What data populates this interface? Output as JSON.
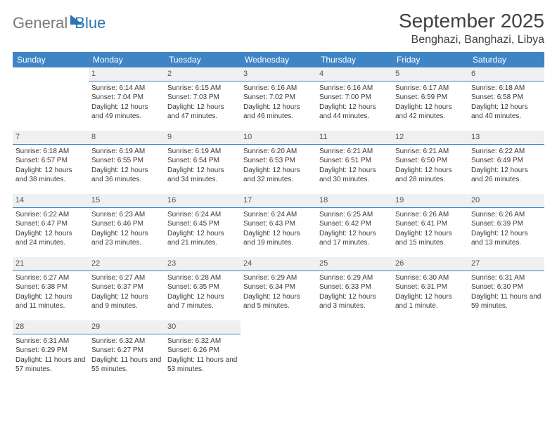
{
  "brand": {
    "part1": "General",
    "part2": "Blue"
  },
  "title": "September 2025",
  "location": "Benghazi, Banghazi, Libya",
  "colors": {
    "header_bg": "#3f85c6",
    "header_text": "#ffffff",
    "daynum_bg": "#eef0f1",
    "daynum_border": "#3f85c6",
    "body_text": "#3a3a3a",
    "brand_gray": "#7a7a7a",
    "brand_blue": "#2f74b5"
  },
  "typography": {
    "title_fontsize": 28,
    "location_fontsize": 16,
    "header_fontsize": 12,
    "cell_fontsize": 10
  },
  "weekdays": [
    "Sunday",
    "Monday",
    "Tuesday",
    "Wednesday",
    "Thursday",
    "Friday",
    "Saturday"
  ],
  "weeks": [
    [
      null,
      {
        "n": "1",
        "sr": "Sunrise: 6:14 AM",
        "ss": "Sunset: 7:04 PM",
        "dl": "Daylight: 12 hours and 49 minutes."
      },
      {
        "n": "2",
        "sr": "Sunrise: 6:15 AM",
        "ss": "Sunset: 7:03 PM",
        "dl": "Daylight: 12 hours and 47 minutes."
      },
      {
        "n": "3",
        "sr": "Sunrise: 6:16 AM",
        "ss": "Sunset: 7:02 PM",
        "dl": "Daylight: 12 hours and 46 minutes."
      },
      {
        "n": "4",
        "sr": "Sunrise: 6:16 AM",
        "ss": "Sunset: 7:00 PM",
        "dl": "Daylight: 12 hours and 44 minutes."
      },
      {
        "n": "5",
        "sr": "Sunrise: 6:17 AM",
        "ss": "Sunset: 6:59 PM",
        "dl": "Daylight: 12 hours and 42 minutes."
      },
      {
        "n": "6",
        "sr": "Sunrise: 6:18 AM",
        "ss": "Sunset: 6:58 PM",
        "dl": "Daylight: 12 hours and 40 minutes."
      }
    ],
    [
      {
        "n": "7",
        "sr": "Sunrise: 6:18 AM",
        "ss": "Sunset: 6:57 PM",
        "dl": "Daylight: 12 hours and 38 minutes."
      },
      {
        "n": "8",
        "sr": "Sunrise: 6:19 AM",
        "ss": "Sunset: 6:55 PM",
        "dl": "Daylight: 12 hours and 36 minutes."
      },
      {
        "n": "9",
        "sr": "Sunrise: 6:19 AM",
        "ss": "Sunset: 6:54 PM",
        "dl": "Daylight: 12 hours and 34 minutes."
      },
      {
        "n": "10",
        "sr": "Sunrise: 6:20 AM",
        "ss": "Sunset: 6:53 PM",
        "dl": "Daylight: 12 hours and 32 minutes."
      },
      {
        "n": "11",
        "sr": "Sunrise: 6:21 AM",
        "ss": "Sunset: 6:51 PM",
        "dl": "Daylight: 12 hours and 30 minutes."
      },
      {
        "n": "12",
        "sr": "Sunrise: 6:21 AM",
        "ss": "Sunset: 6:50 PM",
        "dl": "Daylight: 12 hours and 28 minutes."
      },
      {
        "n": "13",
        "sr": "Sunrise: 6:22 AM",
        "ss": "Sunset: 6:49 PM",
        "dl": "Daylight: 12 hours and 26 minutes."
      }
    ],
    [
      {
        "n": "14",
        "sr": "Sunrise: 6:22 AM",
        "ss": "Sunset: 6:47 PM",
        "dl": "Daylight: 12 hours and 24 minutes."
      },
      {
        "n": "15",
        "sr": "Sunrise: 6:23 AM",
        "ss": "Sunset: 6:46 PM",
        "dl": "Daylight: 12 hours and 23 minutes."
      },
      {
        "n": "16",
        "sr": "Sunrise: 6:24 AM",
        "ss": "Sunset: 6:45 PM",
        "dl": "Daylight: 12 hours and 21 minutes."
      },
      {
        "n": "17",
        "sr": "Sunrise: 6:24 AM",
        "ss": "Sunset: 6:43 PM",
        "dl": "Daylight: 12 hours and 19 minutes."
      },
      {
        "n": "18",
        "sr": "Sunrise: 6:25 AM",
        "ss": "Sunset: 6:42 PM",
        "dl": "Daylight: 12 hours and 17 minutes."
      },
      {
        "n": "19",
        "sr": "Sunrise: 6:26 AM",
        "ss": "Sunset: 6:41 PM",
        "dl": "Daylight: 12 hours and 15 minutes."
      },
      {
        "n": "20",
        "sr": "Sunrise: 6:26 AM",
        "ss": "Sunset: 6:39 PM",
        "dl": "Daylight: 12 hours and 13 minutes."
      }
    ],
    [
      {
        "n": "21",
        "sr": "Sunrise: 6:27 AM",
        "ss": "Sunset: 6:38 PM",
        "dl": "Daylight: 12 hours and 11 minutes."
      },
      {
        "n": "22",
        "sr": "Sunrise: 6:27 AM",
        "ss": "Sunset: 6:37 PM",
        "dl": "Daylight: 12 hours and 9 minutes."
      },
      {
        "n": "23",
        "sr": "Sunrise: 6:28 AM",
        "ss": "Sunset: 6:35 PM",
        "dl": "Daylight: 12 hours and 7 minutes."
      },
      {
        "n": "24",
        "sr": "Sunrise: 6:29 AM",
        "ss": "Sunset: 6:34 PM",
        "dl": "Daylight: 12 hours and 5 minutes."
      },
      {
        "n": "25",
        "sr": "Sunrise: 6:29 AM",
        "ss": "Sunset: 6:33 PM",
        "dl": "Daylight: 12 hours and 3 minutes."
      },
      {
        "n": "26",
        "sr": "Sunrise: 6:30 AM",
        "ss": "Sunset: 6:31 PM",
        "dl": "Daylight: 12 hours and 1 minute."
      },
      {
        "n": "27",
        "sr": "Sunrise: 6:31 AM",
        "ss": "Sunset: 6:30 PM",
        "dl": "Daylight: 11 hours and 59 minutes."
      }
    ],
    [
      {
        "n": "28",
        "sr": "Sunrise: 6:31 AM",
        "ss": "Sunset: 6:29 PM",
        "dl": "Daylight: 11 hours and 57 minutes."
      },
      {
        "n": "29",
        "sr": "Sunrise: 6:32 AM",
        "ss": "Sunset: 6:27 PM",
        "dl": "Daylight: 11 hours and 55 minutes."
      },
      {
        "n": "30",
        "sr": "Sunrise: 6:32 AM",
        "ss": "Sunset: 6:26 PM",
        "dl": "Daylight: 11 hours and 53 minutes."
      },
      null,
      null,
      null,
      null
    ]
  ]
}
